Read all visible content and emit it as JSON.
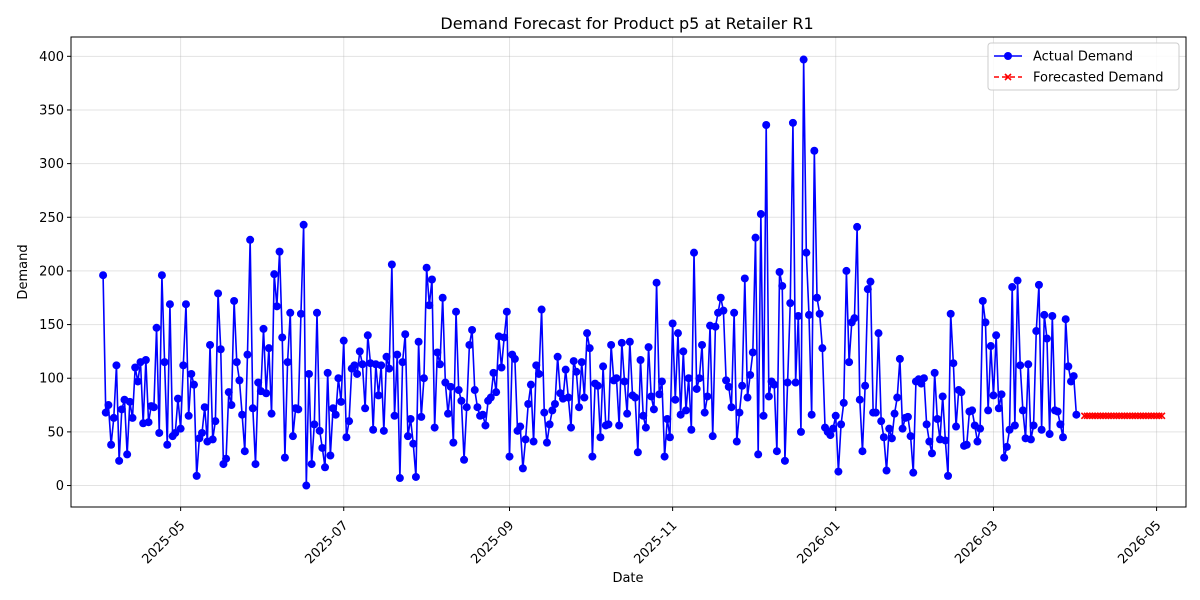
{
  "chart_data": {
    "type": "line",
    "title": "Demand Forecast for Product p5 at Retailer R1",
    "xlabel": "Date",
    "ylabel": "Demand",
    "x_range": [
      "2025-03-21",
      "2026-05-12"
    ],
    "ylim": [
      -20,
      418
    ],
    "yticks": [
      0,
      50,
      100,
      150,
      200,
      250,
      300,
      350,
      400
    ],
    "xticks": [
      {
        "date": "2025-05-01",
        "label": "2025-05"
      },
      {
        "date": "2025-07-01",
        "label": "2025-07"
      },
      {
        "date": "2025-09-01",
        "label": "2025-09"
      },
      {
        "date": "2025-11-01",
        "label": "2025-11"
      },
      {
        "date": "2026-01-01",
        "label": "2026-01"
      },
      {
        "date": "2026-03-01",
        "label": "2026-03"
      },
      {
        "date": "2026-05-01",
        "label": "2026-05"
      }
    ],
    "grid": true,
    "legend_position": "top-right",
    "series": [
      {
        "name": "Actual Demand",
        "color": "#0000ff",
        "line_style": "solid",
        "marker": "circle",
        "start_date": "2025-04-02",
        "values": [
          196,
          68,
          75,
          38,
          63,
          112,
          23,
          71,
          80,
          29,
          78,
          63,
          110,
          97,
          115,
          58,
          117,
          59,
          74,
          73,
          147,
          49,
          196,
          115,
          38,
          169,
          46,
          49,
          81,
          53,
          112,
          169,
          65,
          104,
          94,
          9,
          44,
          49,
          73,
          41,
          131,
          43,
          60,
          179,
          127,
          20,
          25,
          87,
          75,
          172,
          115,
          98,
          66,
          32,
          122,
          229,
          72,
          20,
          96,
          88,
          146,
          86,
          128,
          67,
          197,
          167,
          218,
          138,
          26,
          115,
          161,
          46,
          72,
          71,
          160,
          243,
          0,
          104,
          20,
          57,
          161,
          51,
          35,
          17,
          105,
          28,
          72,
          66,
          100,
          78,
          135,
          45,
          60,
          109,
          112,
          104,
          125,
          113,
          72,
          140,
          114,
          52,
          113,
          84,
          112,
          51,
          120,
          109,
          206,
          65,
          122,
          7,
          115,
          141,
          46,
          62,
          39,
          8,
          134,
          64,
          100,
          203,
          168,
          192,
          54,
          124,
          113,
          175,
          96,
          67,
          92,
          40,
          162,
          89,
          79,
          24,
          73,
          131,
          145,
          89,
          73,
          65,
          66,
          56,
          79,
          82,
          105,
          87,
          139,
          110,
          138,
          162,
          27,
          122,
          118,
          51,
          55,
          16,
          43,
          76,
          94,
          41,
          112,
          104,
          164,
          68,
          40,
          57,
          70,
          76,
          120,
          86,
          81,
          108,
          82,
          54,
          116,
          106,
          73,
          115,
          82,
          142,
          128,
          27,
          95,
          93,
          45,
          111,
          56,
          57,
          131,
          98,
          100,
          56,
          133,
          97,
          67,
          134,
          84,
          82,
          31,
          117,
          65,
          54,
          129,
          83,
          71,
          189,
          85,
          97,
          27,
          62,
          45,
          151,
          80,
          142,
          66,
          125,
          70,
          100,
          52,
          217,
          90,
          100,
          131,
          68,
          83,
          149,
          46,
          148,
          161,
          175,
          163,
          98,
          92,
          73,
          161,
          41,
          68,
          93,
          193,
          82,
          103,
          124,
          231,
          29,
          253,
          65,
          336,
          83,
          97,
          94,
          32,
          199,
          186,
          23,
          96,
          170,
          338,
          96,
          158,
          50,
          397,
          217,
          159,
          66,
          312,
          175,
          160,
          128,
          54,
          50,
          47,
          53,
          65,
          13,
          57,
          77,
          200,
          115,
          152,
          156,
          241,
          80,
          32,
          93,
          183,
          190,
          68,
          68,
          142,
          60,
          45,
          14,
          53,
          44,
          67,
          82,
          118,
          53,
          63,
          64,
          46,
          12,
          97,
          99,
          95,
          100,
          57,
          41,
          30,
          105,
          62,
          43,
          83,
          42,
          9,
          160,
          114,
          55,
          89,
          87,
          37,
          38,
          69,
          70,
          56,
          41,
          53,
          172,
          152,
          70,
          130,
          84,
          140,
          72,
          85,
          26,
          36,
          52,
          185,
          56,
          191,
          112,
          70,
          44,
          113,
          43,
          56,
          144,
          187,
          52,
          159,
          137,
          48,
          158,
          70,
          69,
          57,
          45,
          155,
          111,
          97,
          102,
          66
        ]
      },
      {
        "name": "Forecasted Demand",
        "color": "#ff0000",
        "line_style": "dashed",
        "marker": "x",
        "start_date": "2026-04-04",
        "values": [
          65,
          65,
          65,
          65,
          65,
          65,
          65,
          65,
          65,
          65,
          65,
          65,
          65,
          65,
          65,
          65,
          65,
          65,
          65,
          65,
          65,
          65,
          65,
          65,
          65,
          65,
          65,
          65,
          65,
          65
        ]
      }
    ]
  }
}
